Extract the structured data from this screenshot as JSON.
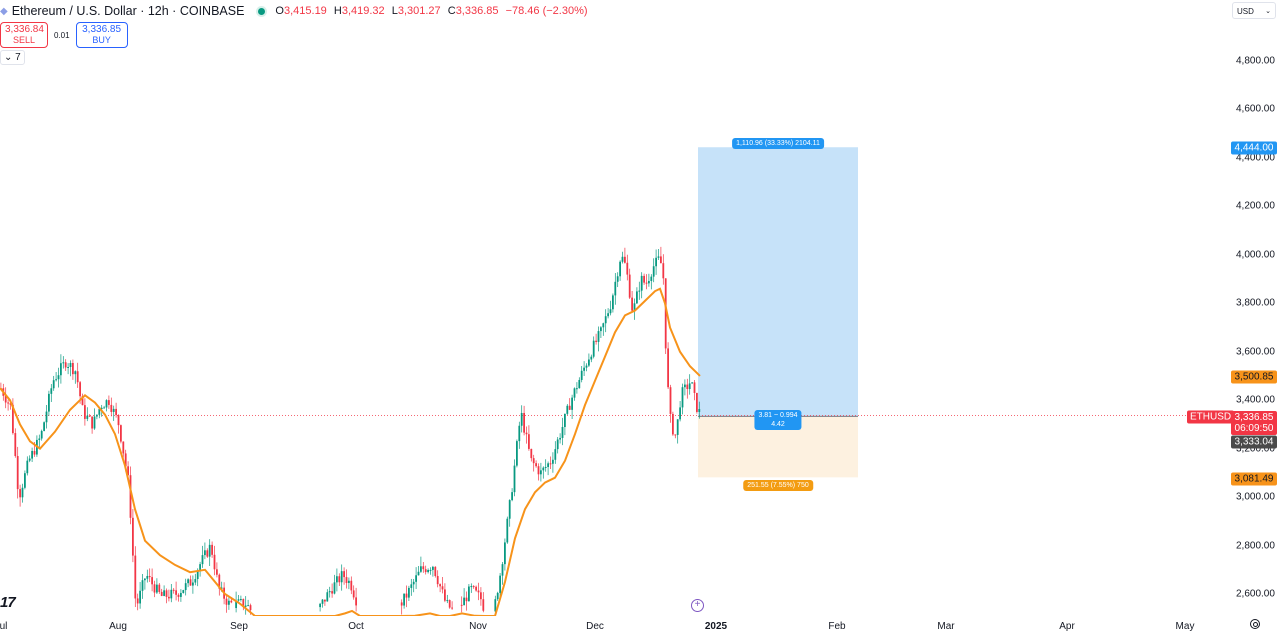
{
  "header": {
    "symbol_title": "Ethereum / U.S. Dollar · 12h · COINBASE",
    "market_status": "open",
    "ohlc": {
      "open_label": "O",
      "open": "3,415.19",
      "high_label": "H",
      "high": "3,419.32",
      "low_label": "L",
      "low": "3,301.27",
      "close_label": "C",
      "close": "3,336.85",
      "change": "−78.46 (−2.30%)"
    }
  },
  "trade": {
    "sell_price": "3,336.84",
    "sell_label": "SELL",
    "spread": "0.01",
    "buy_price": "3,336.85",
    "buy_label": "BUY"
  },
  "indicators_toggle": {
    "label": "7"
  },
  "currency": {
    "label": "USD"
  },
  "colors": {
    "up": "#089981",
    "down": "#f23645",
    "ma": "#f7931a",
    "target_zone": "#c6e2f9",
    "stop_zone": "#fdf1e0",
    "target_label": "#2196f3",
    "stop_label": "#f39c12",
    "last_price": "#f23645"
  },
  "price_labels": {
    "target": "4,444.00",
    "ma_value": "3,500.85",
    "ticker": "ETHUSD",
    "last_price": "3,336.85",
    "countdown": "06:09:50",
    "entry": "3,333.04",
    "stop": "3,081.49"
  },
  "position_tool": {
    "target_text": "1,110.96 (33.33%) 2104.11",
    "ratio_line1": "3.81 ~ 0.994",
    "ratio_line2": "4.42",
    "stop_text": "251.55 (7.55%) 750"
  },
  "chart_data": {
    "type": "candlestick",
    "title": "Ethereum / U.S. Dollar · 12h · COINBASE",
    "xlabel": "",
    "ylabel": "USD",
    "ylim": [
      2560,
      4860
    ],
    "y_ticks": [
      "4,800.00",
      "4,600.00",
      "4,400.00",
      "4,200.00",
      "4,000.00",
      "3,800.00",
      "3,600.00",
      "3,400.00",
      "3,200.00",
      "3,000.00",
      "2,800.00",
      "2,600.00"
    ],
    "y_tick_values": [
      4800,
      4600,
      4400,
      4200,
      4000,
      3800,
      3600,
      3400,
      3200,
      3000,
      2800,
      2600
    ],
    "x_ticks": [
      {
        "label": "Jul",
        "x": 1
      },
      {
        "label": "Aug",
        "x": 118
      },
      {
        "label": "Sep",
        "x": 239
      },
      {
        "label": "Oct",
        "x": 356
      },
      {
        "label": "Nov",
        "x": 478
      },
      {
        "label": "Dec",
        "x": 595
      },
      {
        "label": "2025",
        "x": 716,
        "bold": true
      },
      {
        "label": "Feb",
        "x": 837
      },
      {
        "label": "Mar",
        "x": 946
      },
      {
        "label": "Apr",
        "x": 1067
      },
      {
        "label": "May",
        "x": 1185
      }
    ],
    "grid": false,
    "series": [
      {
        "name": "ETHUSD close (approx.)",
        "type": "candles",
        "path_x": [
          0,
          10,
          18,
          28,
          40,
          52,
          65,
          75,
          82,
          92,
          100,
          108,
          118,
          128,
          135,
          145,
          160,
          175,
          190,
          200,
          210,
          218,
          228,
          245,
          260,
          280,
          300,
          315,
          330,
          342,
          350,
          360,
          375,
          390,
          405,
          420,
          432,
          445,
          455,
          470,
          480,
          490,
          500,
          510,
          520,
          530,
          540,
          550,
          560,
          570,
          580,
          590,
          600,
          610,
          615,
          620,
          625,
          632,
          640,
          645,
          652,
          658,
          662,
          666,
          670,
          675,
          680,
          685,
          690,
          695,
          700
        ],
        "path_p": [
          3450,
          3370,
          3000,
          3150,
          3250,
          3480,
          3560,
          3520,
          3350,
          3300,
          3380,
          3400,
          3300,
          3050,
          2540,
          2680,
          2590,
          2600,
          2650,
          2730,
          2800,
          2620,
          2560,
          2560,
          2480,
          2400,
          2450,
          2520,
          2620,
          2680,
          2640,
          2520,
          2440,
          2500,
          2590,
          2700,
          2720,
          2560,
          2520,
          2620,
          2580,
          2460,
          2700,
          3000,
          3350,
          3150,
          3100,
          3150,
          3270,
          3400,
          3500,
          3600,
          3680,
          3800,
          3900,
          4000,
          3950,
          3760,
          3900,
          3880,
          3950,
          3980,
          3950,
          3500,
          3300,
          3250,
          3420,
          3450,
          3480,
          3380,
          3336
        ]
      },
      {
        "name": "Moving Average",
        "type": "line",
        "x": [
          0,
          10,
          20,
          30,
          40,
          55,
          70,
          85,
          95,
          105,
          115,
          125,
          135,
          145,
          160,
          175,
          190,
          205,
          215,
          225,
          240,
          255,
          270,
          290,
          310,
          325,
          335,
          345,
          352,
          360,
          370,
          385,
          400,
          415,
          430,
          440,
          450,
          462,
          475,
          485,
          495,
          505,
          515,
          525,
          535,
          545,
          555,
          565,
          575,
          585,
          595,
          605,
          615,
          625,
          635,
          645,
          655,
          660,
          665,
          670,
          680,
          690,
          700
        ],
        "y": [
          3450,
          3400,
          3300,
          3230,
          3200,
          3270,
          3360,
          3420,
          3390,
          3340,
          3260,
          3130,
          2950,
          2820,
          2760,
          2720,
          2690,
          2700,
          2650,
          2600,
          2560,
          2490,
          2420,
          2380,
          2390,
          2420,
          2480,
          2520,
          2530,
          2490,
          2420,
          2420,
          2480,
          2510,
          2520,
          2500,
          2480,
          2520,
          2510,
          2470,
          2490,
          2650,
          2830,
          2950,
          3020,
          3060,
          3080,
          3150,
          3260,
          3380,
          3480,
          3580,
          3680,
          3750,
          3770,
          3810,
          3850,
          3860,
          3800,
          3700,
          3600,
          3540,
          3500
        ]
      }
    ],
    "position": {
      "type": "long",
      "entry": 3333.04,
      "target": 4444.0,
      "stop": 3081.49,
      "x_start": 698,
      "x_end": 858
    }
  }
}
